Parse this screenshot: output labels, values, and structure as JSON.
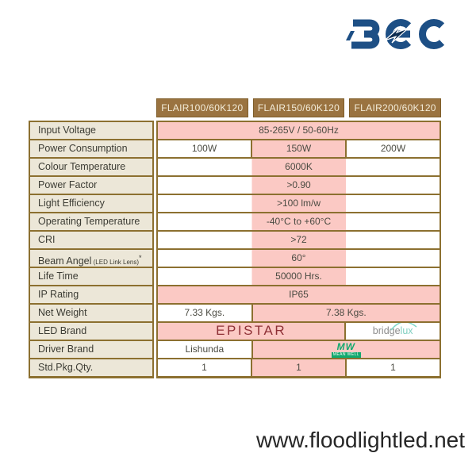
{
  "logo": {
    "brand": "BEC"
  },
  "table": {
    "columns": [
      "FLAIR100/60K120",
      "FLAIR150/60K120",
      "FLAIR200/60K120"
    ],
    "rows": [
      {
        "label": "Input Voltage",
        "cells": [
          {
            "span": 3,
            "text": "85-265V / 50-60Hz",
            "bg": "pink"
          }
        ]
      },
      {
        "label": "Power Consumption",
        "cells": [
          {
            "span": 1,
            "text": "100W",
            "bg": "white"
          },
          {
            "span": 1,
            "text": "150W",
            "bg": "pink"
          },
          {
            "span": 1,
            "text": "200W",
            "bg": "white"
          }
        ]
      },
      {
        "label": "Colour Temperature",
        "cells": [
          {
            "span": 3,
            "text": "6000K",
            "bg": "stripe"
          }
        ]
      },
      {
        "label": "Power Factor",
        "cells": [
          {
            "span": 3,
            "text": ">0.90",
            "bg": "stripe"
          }
        ]
      },
      {
        "label": "Light Efficiency",
        "cells": [
          {
            "span": 3,
            "text": ">100 lm/w",
            "bg": "stripe"
          }
        ]
      },
      {
        "label": "Operating Temperature",
        "cells": [
          {
            "span": 3,
            "text": "-40°C to +60°C",
            "bg": "stripe"
          }
        ]
      },
      {
        "label": "CRI",
        "cells": [
          {
            "span": 3,
            "text": ">72",
            "bg": "stripe"
          }
        ]
      },
      {
        "label": "Beam Angel",
        "label_small": " (LED Link Lens)",
        "label_sup": "*",
        "cells": [
          {
            "span": 3,
            "text": "60°",
            "bg": "stripe"
          }
        ]
      },
      {
        "label": "Life Time",
        "cells": [
          {
            "span": 3,
            "text": "50000 Hrs.",
            "bg": "stripe"
          }
        ]
      },
      {
        "label": "IP Rating",
        "cells": [
          {
            "span": 3,
            "text": "IP65",
            "bg": "pink"
          }
        ]
      },
      {
        "label": "Net Weight",
        "cells": [
          {
            "span": 1,
            "text": "7.33 Kgs.",
            "bg": "white"
          },
          {
            "span": 2,
            "text": "7.38 Kgs.",
            "bg": "pink"
          }
        ]
      },
      {
        "label": "LED Brand",
        "cells": [
          {
            "span": 2,
            "text": "EPISTAR",
            "bg": "pink",
            "variant": "epistar"
          },
          {
            "span": 1,
            "logo": "bridgelux",
            "bg": "white"
          }
        ]
      },
      {
        "label": "Driver Brand",
        "cells": [
          {
            "span": 1,
            "text": "Lishunda",
            "bg": "white"
          },
          {
            "span": 2,
            "logo": "meanwell",
            "bg": "pink"
          }
        ]
      },
      {
        "label": "Std.Pkg.Qty.",
        "cells": [
          {
            "span": 1,
            "text": "1",
            "bg": "white"
          },
          {
            "span": 1,
            "text": "1",
            "bg": "pink"
          },
          {
            "span": 1,
            "text": "1",
            "bg": "white"
          }
        ]
      }
    ]
  },
  "logos": {
    "bridgelux": {
      "prefix": "bridge",
      "suffix": "lux"
    },
    "meanwell": {
      "abbr": "MW",
      "name": "MEAN WELL"
    }
  },
  "footer": {
    "website": "www.floodlightled.net"
  },
  "colors": {
    "highlight_pink": "#fbc9c4",
    "header_brown": "#9a7340",
    "table_border": "#8c7030",
    "label_cream": "#ece7d8",
    "bec_blue": "#1d4f85",
    "epistar_red": "#8e3036",
    "meanwell_green": "#12a96e",
    "bridgelux_teal": "#7fcfc0"
  }
}
